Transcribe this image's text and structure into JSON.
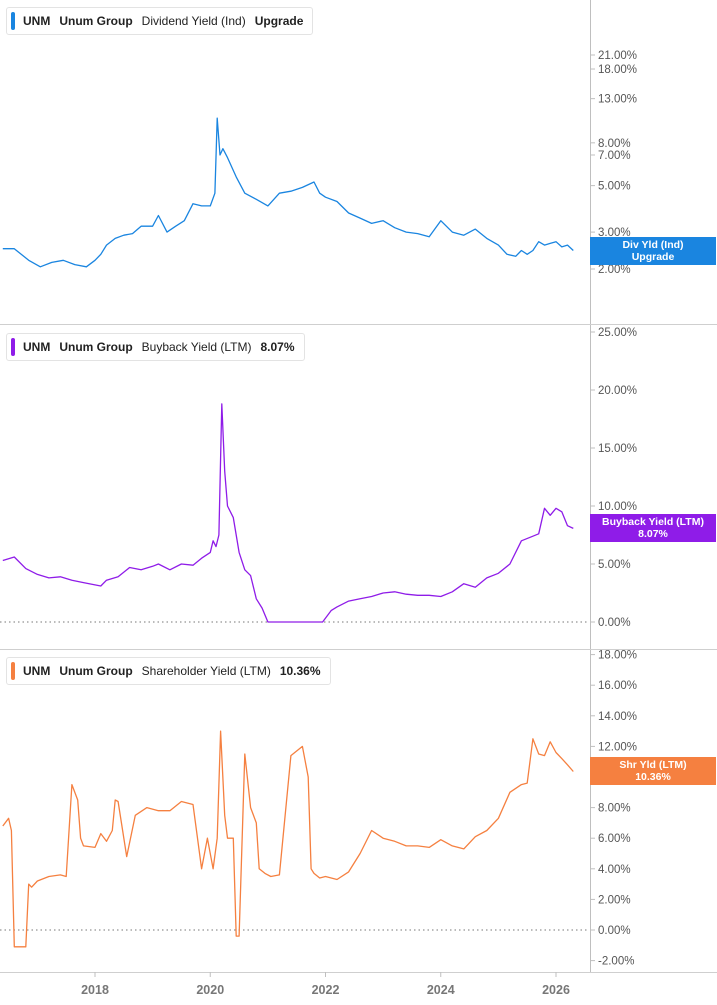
{
  "panels": [
    {
      "ticker": "UNM",
      "company": "Unum Group",
      "metric": "Dividend Yield (Ind)",
      "value": "Upgrade",
      "color": "#1a85e0",
      "flag_line1": "Div Yld (Ind)",
      "flag_line2": "Upgrade",
      "flag_value": 2.45
    },
    {
      "ticker": "UNM",
      "company": "Unum Group",
      "metric": "Buyback Yield (LTM)",
      "value": "8.07%",
      "color": "#8f1ce8",
      "flag_line1": "Buyback Yield (LTM)",
      "flag_line2": "8.07%",
      "flag_value": 8.07
    },
    {
      "ticker": "UNM",
      "company": "Unum Group",
      "metric": "Shareholder Yield (LTM)",
      "value": "10.36%",
      "color": "#f58040",
      "flag_line1": "Shr Yld (LTM)",
      "flag_line2": "10.36%",
      "flag_value": 10.36
    }
  ],
  "chart_data": [
    {
      "type": "line",
      "title": "UNM Unum Group Dividend Yield (Ind)",
      "y_scale": "log",
      "ylim": [
        1.9,
        22.5
      ],
      "xlim": [
        2016.4,
        2026.5
      ],
      "y_ticks": [
        "2.00%",
        "3.00%",
        "5.00%",
        "7.00%",
        "8.00%",
        "13.00%",
        "18.00%",
        "21.00%"
      ],
      "y_tick_values": [
        2,
        3,
        5,
        7,
        8,
        13,
        18,
        21
      ],
      "series": [
        {
          "name": "Dividend Yield (Ind)",
          "color": "#1a85e0",
          "x": [
            2016.4,
            2016.6,
            2016.85,
            2017.05,
            2017.25,
            2017.45,
            2017.65,
            2017.85,
            2018.0,
            2018.1,
            2018.2,
            2018.35,
            2018.5,
            2018.65,
            2018.8,
            2019.0,
            2019.1,
            2019.25,
            2019.4,
            2019.55,
            2019.7,
            2019.85,
            2020.0,
            2020.08,
            2020.12,
            2020.17,
            2020.22,
            2020.3,
            2020.45,
            2020.6,
            2020.8,
            2021.0,
            2021.2,
            2021.4,
            2021.6,
            2021.8,
            2021.9,
            2022.0,
            2022.2,
            2022.4,
            2022.6,
            2022.8,
            2023.0,
            2023.2,
            2023.4,
            2023.6,
            2023.8,
            2024.0,
            2024.2,
            2024.4,
            2024.6,
            2024.8,
            2025.0,
            2025.15,
            2025.3,
            2025.4,
            2025.5,
            2025.6,
            2025.7,
            2025.8,
            2025.9,
            2026.0,
            2026.1,
            2026.2,
            2026.3
          ],
          "y": [
            2.5,
            2.5,
            2.2,
            2.05,
            2.15,
            2.2,
            2.1,
            2.05,
            2.2,
            2.35,
            2.6,
            2.8,
            2.9,
            2.95,
            3.2,
            3.2,
            3.6,
            3.0,
            3.2,
            3.4,
            4.1,
            4.0,
            4.0,
            4.6,
            10.5,
            7.0,
            7.5,
            6.8,
            5.5,
            4.6,
            4.3,
            4.0,
            4.6,
            4.7,
            4.9,
            5.2,
            4.6,
            4.4,
            4.2,
            3.7,
            3.5,
            3.3,
            3.4,
            3.15,
            3.0,
            2.95,
            2.85,
            3.4,
            3.0,
            2.9,
            3.1,
            2.8,
            2.6,
            2.35,
            2.3,
            2.45,
            2.35,
            2.45,
            2.7,
            2.6,
            2.65,
            2.7,
            2.55,
            2.6,
            2.45
          ]
        }
      ]
    },
    {
      "type": "line",
      "title": "UNM Unum Group Buyback Yield (LTM)",
      "ylim": [
        -1,
        26
      ],
      "xlim": [
        2016.4,
        2026.5
      ],
      "y_ticks": [
        "0.00%",
        "5.00%",
        "10.00%",
        "15.00%",
        "20.00%",
        "25.00%"
      ],
      "y_tick_values": [
        0,
        5,
        10,
        15,
        20,
        25
      ],
      "series": [
        {
          "name": "Buyback Yield (LTM)",
          "color": "#8f1ce8",
          "x": [
            2016.4,
            2016.6,
            2016.8,
            2017.0,
            2017.2,
            2017.4,
            2017.6,
            2017.8,
            2018.0,
            2018.1,
            2018.2,
            2018.4,
            2018.6,
            2018.8,
            2019.0,
            2019.1,
            2019.3,
            2019.5,
            2019.7,
            2019.85,
            2020.0,
            2020.05,
            2020.1,
            2020.15,
            2020.2,
            2020.25,
            2020.3,
            2020.4,
            2020.5,
            2020.6,
            2020.7,
            2020.8,
            2020.9,
            2021.0,
            2021.2,
            2021.4,
            2021.6,
            2021.8,
            2021.95,
            2022.1,
            2022.2,
            2022.4,
            2022.6,
            2022.8,
            2023.0,
            2023.2,
            2023.4,
            2023.6,
            2023.8,
            2024.0,
            2024.2,
            2024.4,
            2024.6,
            2024.8,
            2025.0,
            2025.2,
            2025.4,
            2025.6,
            2025.7,
            2025.8,
            2025.9,
            2026.0,
            2026.1,
            2026.2,
            2026.3
          ],
          "y": [
            5.3,
            5.6,
            4.6,
            4.1,
            3.8,
            3.9,
            3.6,
            3.4,
            3.2,
            3.1,
            3.6,
            3.9,
            4.7,
            4.5,
            4.8,
            5.0,
            4.5,
            5.0,
            4.9,
            5.5,
            6.0,
            7.0,
            6.5,
            7.5,
            18.8,
            13.0,
            10.0,
            9.0,
            6.0,
            4.5,
            4.0,
            2.0,
            1.2,
            0.0,
            0.0,
            0.0,
            0.0,
            0.0,
            0.0,
            1.0,
            1.3,
            1.8,
            2.0,
            2.2,
            2.5,
            2.6,
            2.4,
            2.3,
            2.3,
            2.2,
            2.6,
            3.3,
            3.0,
            3.8,
            4.2,
            5.0,
            7.0,
            7.4,
            7.6,
            9.8,
            9.2,
            9.8,
            9.5,
            8.3,
            8.07
          ]
        }
      ]
    },
    {
      "type": "line",
      "title": "UNM Unum Group Shareholder Yield (LTM)",
      "ylim": [
        -3,
        19
      ],
      "xlim": [
        2016.4,
        2026.5
      ],
      "y_ticks": [
        "-2.00%",
        "0.00%",
        "2.00%",
        "4.00%",
        "6.00%",
        "8.00%",
        "10.00%",
        "12.00%",
        "14.00%",
        "16.00%",
        "18.00%"
      ],
      "y_tick_values": [
        -2,
        0,
        2,
        4,
        6,
        8,
        10,
        12,
        14,
        16,
        18
      ],
      "series": [
        {
          "name": "Shareholder Yield (LTM)",
          "color": "#f58040",
          "x": [
            2016.4,
            2016.5,
            2016.55,
            2016.6,
            2016.8,
            2016.85,
            2016.9,
            2017.0,
            2017.2,
            2017.4,
            2017.5,
            2017.6,
            2017.7,
            2017.75,
            2017.8,
            2018.0,
            2018.1,
            2018.2,
            2018.3,
            2018.35,
            2018.4,
            2018.55,
            2018.7,
            2018.9,
            2019.1,
            2019.3,
            2019.5,
            2019.7,
            2019.85,
            2019.95,
            2020.05,
            2020.12,
            2020.18,
            2020.25,
            2020.3,
            2020.4,
            2020.45,
            2020.5,
            2020.6,
            2020.7,
            2020.8,
            2020.85,
            2020.95,
            2021.05,
            2021.2,
            2021.4,
            2021.6,
            2021.7,
            2021.75,
            2021.8,
            2021.9,
            2022.0,
            2022.2,
            2022.4,
            2022.6,
            2022.8,
            2023.0,
            2023.2,
            2023.4,
            2023.6,
            2023.8,
            2024.0,
            2024.2,
            2024.4,
            2024.6,
            2024.8,
            2025.0,
            2025.2,
            2025.4,
            2025.5,
            2025.6,
            2025.7,
            2025.8,
            2025.9,
            2026.0,
            2026.1,
            2026.2,
            2026.3
          ],
          "y": [
            6.8,
            7.3,
            6.5,
            -1.1,
            -1.1,
            3.0,
            2.8,
            3.2,
            3.5,
            3.6,
            3.5,
            9.5,
            8.5,
            6.0,
            5.5,
            5.4,
            6.3,
            5.8,
            6.5,
            8.5,
            8.4,
            4.8,
            7.5,
            8.0,
            7.8,
            7.8,
            8.4,
            8.2,
            4.0,
            6.0,
            4.0,
            6.0,
            13.0,
            7.5,
            6.0,
            6.0,
            -0.4,
            -0.4,
            11.5,
            8.0,
            7.0,
            4.0,
            3.7,
            3.5,
            3.6,
            11.4,
            12.0,
            10.0,
            4.0,
            3.7,
            3.4,
            3.5,
            3.3,
            3.8,
            5.0,
            6.5,
            6.0,
            5.8,
            5.5,
            5.5,
            5.4,
            5.9,
            5.5,
            5.3,
            6.1,
            6.5,
            7.3,
            9.0,
            9.5,
            9.6,
            12.5,
            11.5,
            11.4,
            12.3,
            11.6,
            11.2,
            10.8,
            10.36
          ]
        }
      ]
    }
  ],
  "x_axis": {
    "ticks": [
      "2018",
      "2020",
      "2022",
      "2024",
      "2026"
    ],
    "tick_values": [
      2018,
      2020,
      2022,
      2024,
      2026
    ]
  }
}
